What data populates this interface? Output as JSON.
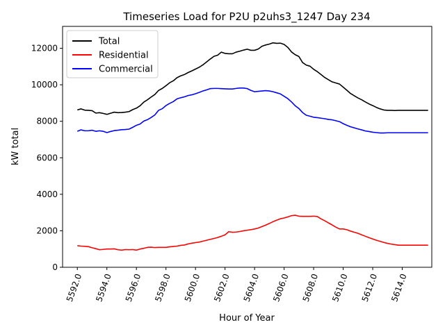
{
  "chart_data": {
    "type": "line",
    "title": "Timeseries Load for P2U p2uhs3_1247  Day 234",
    "xlabel": "Hour of Year",
    "ylabel": "kW total",
    "xlim": [
      5591.0,
      5616.0
    ],
    "ylim": [
      0,
      13200
    ],
    "grid": false,
    "legend_position": "top-left",
    "x_ticks": [
      5592,
      5594,
      5596,
      5598,
      5600,
      5602,
      5604,
      5606,
      5608,
      5610,
      5612,
      5614
    ],
    "x_tick_labels": [
      "5592.0",
      "5594.0",
      "5596.0",
      "5598.0",
      "5600.0",
      "5602.0",
      "5604.0",
      "5606.0",
      "5608.0",
      "5610.0",
      "5612.0",
      "5614.0"
    ],
    "y_ticks": [
      0,
      2000,
      4000,
      6000,
      8000,
      10000,
      12000
    ],
    "y_tick_labels": [
      "0",
      "2000",
      "4000",
      "6000",
      "8000",
      "10000",
      "12000"
    ],
    "x": [
      5592.0,
      5592.25,
      5592.5,
      5592.75,
      5593.0,
      5593.25,
      5593.5,
      5593.75,
      5594.0,
      5594.25,
      5594.5,
      5594.75,
      5595.0,
      5595.25,
      5595.5,
      5595.75,
      5596.0,
      5596.25,
      5596.5,
      5596.75,
      5597.0,
      5597.25,
      5597.5,
      5597.75,
      5598.0,
      5598.25,
      5598.5,
      5598.75,
      5599.0,
      5599.25,
      5599.5,
      5599.75,
      5600.0,
      5600.25,
      5600.5,
      5600.75,
      5601.0,
      5601.25,
      5601.5,
      5601.75,
      5602.0,
      5602.25,
      5602.5,
      5602.75,
      5603.0,
      5603.25,
      5603.5,
      5603.75,
      5604.0,
      5604.25,
      5604.5,
      5604.75,
      5605.0,
      5605.25,
      5605.5,
      5605.75,
      5606.0,
      5606.25,
      5606.5,
      5606.75,
      5607.0,
      5607.25,
      5607.5,
      5607.75,
      5608.0,
      5608.25,
      5608.5,
      5608.75,
      5609.0,
      5609.25,
      5609.5,
      5609.75,
      5610.0,
      5610.25,
      5610.5,
      5610.75,
      5611.0,
      5611.25,
      5611.5,
      5611.75,
      5612.0,
      5612.25,
      5612.5,
      5612.75,
      5613.0,
      5613.25,
      5613.5,
      5613.75,
      5614.0,
      5614.25,
      5614.5,
      5614.75,
      5615.0,
      5615.25,
      5615.5,
      5615.75
    ],
    "series": [
      {
        "name": "Total",
        "color": "#000000",
        "values": [
          8620,
          8680,
          8610,
          8600,
          8580,
          8450,
          8470,
          8430,
          8380,
          8440,
          8500,
          8470,
          8480,
          8500,
          8530,
          8640,
          8720,
          8850,
          9050,
          9180,
          9330,
          9470,
          9690,
          9800,
          9950,
          10110,
          10220,
          10390,
          10490,
          10560,
          10670,
          10760,
          10860,
          10960,
          11090,
          11250,
          11410,
          11560,
          11620,
          11790,
          11720,
          11700,
          11700,
          11790,
          11840,
          11900,
          11950,
          11890,
          11890,
          11960,
          12110,
          12180,
          12230,
          12300,
          12270,
          12280,
          12210,
          12050,
          11800,
          11650,
          11550,
          11220,
          11080,
          11020,
          10850,
          10720,
          10560,
          10400,
          10280,
          10160,
          10100,
          10040,
          9870,
          9700,
          9520,
          9400,
          9280,
          9180,
          9060,
          8950,
          8860,
          8760,
          8680,
          8620,
          8600,
          8600,
          8590,
          8600,
          8600,
          8600,
          8600,
          8600,
          8600,
          8600,
          8600,
          8600
        ]
      },
      {
        "name": "Residential",
        "color": "#ff0000",
        "values": [
          1180,
          1160,
          1150,
          1130,
          1070,
          1020,
          960,
          980,
          1000,
          1000,
          1010,
          960,
          940,
          970,
          960,
          970,
          940,
          1000,
          1040,
          1090,
          1100,
          1080,
          1090,
          1090,
          1090,
          1120,
          1140,
          1160,
          1200,
          1220,
          1280,
          1320,
          1350,
          1380,
          1430,
          1480,
          1530,
          1580,
          1630,
          1700,
          1780,
          1950,
          1920,
          1930,
          1960,
          2000,
          2030,
          2060,
          2100,
          2150,
          2230,
          2310,
          2400,
          2500,
          2580,
          2660,
          2700,
          2760,
          2830,
          2850,
          2800,
          2790,
          2790,
          2790,
          2800,
          2780,
          2650,
          2550,
          2430,
          2320,
          2200,
          2100,
          2100,
          2060,
          1980,
          1920,
          1860,
          1780,
          1700,
          1620,
          1550,
          1480,
          1420,
          1360,
          1310,
          1270,
          1240,
          1210,
          1210,
          1210,
          1210,
          1210,
          1210,
          1210,
          1210,
          1210
        ]
      },
      {
        "name": "Commercial",
        "color": "#0000ff",
        "values": [
          7450,
          7530,
          7480,
          7480,
          7510,
          7450,
          7480,
          7450,
          7380,
          7440,
          7490,
          7510,
          7540,
          7550,
          7570,
          7670,
          7780,
          7850,
          8010,
          8090,
          8210,
          8350,
          8600,
          8690,
          8860,
          8980,
          9080,
          9230,
          9290,
          9340,
          9410,
          9450,
          9510,
          9580,
          9660,
          9720,
          9790,
          9800,
          9800,
          9790,
          9780,
          9770,
          9770,
          9800,
          9820,
          9820,
          9790,
          9690,
          9620,
          9640,
          9660,
          9680,
          9660,
          9620,
          9560,
          9500,
          9370,
          9240,
          9060,
          8850,
          8700,
          8480,
          8330,
          8280,
          8220,
          8200,
          8170,
          8140,
          8100,
          8080,
          8030,
          7980,
          7870,
          7780,
          7700,
          7640,
          7580,
          7530,
          7470,
          7440,
          7400,
          7380,
          7360,
          7360,
          7370,
          7370,
          7370,
          7370,
          7370,
          7370,
          7370,
          7370,
          7370,
          7370,
          7370,
          7370
        ]
      }
    ]
  }
}
